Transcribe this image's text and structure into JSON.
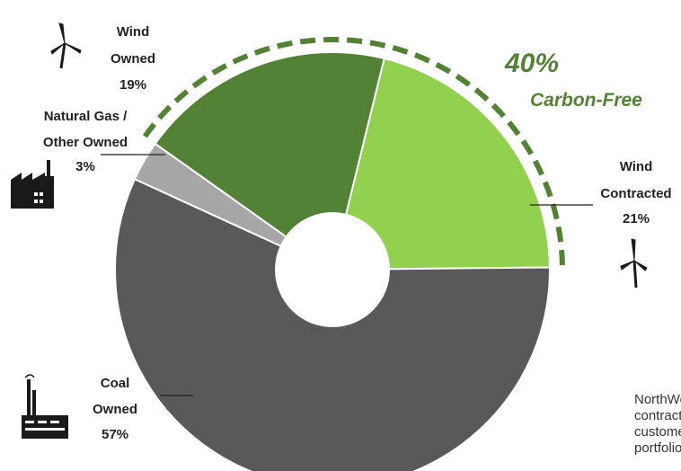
{
  "chart_data": {
    "type": "pie",
    "variant": "donut",
    "slices": [
      {
        "label_lines": [
          "Wind",
          "Contracted",
          "21%"
        ],
        "value": 21,
        "color": "#92d050"
      },
      {
        "label_lines": [
          "Coal",
          "Owned",
          "57%"
        ],
        "value": 57,
        "color": "#595959"
      },
      {
        "label_lines": [
          "Natural Gas /",
          "Other Owned",
          "3%"
        ],
        "value": 3,
        "color": "#a6a6a6"
      },
      {
        "label_lines": [
          "Wind",
          "Owned",
          "19%"
        ],
        "value": 19,
        "color": "#538135"
      }
    ],
    "callout": {
      "percent": "40%",
      "text": "Carbon-Free",
      "color": "#548235"
    },
    "icons": [
      "wind-turbine-icon",
      "wind-turbine-icon",
      "factory-icon",
      "power-plant-icon"
    ]
  },
  "side_note": {
    "lines": [
      "NorthWestern",
      "contracts",
      "customers",
      "portfolio"
    ]
  }
}
